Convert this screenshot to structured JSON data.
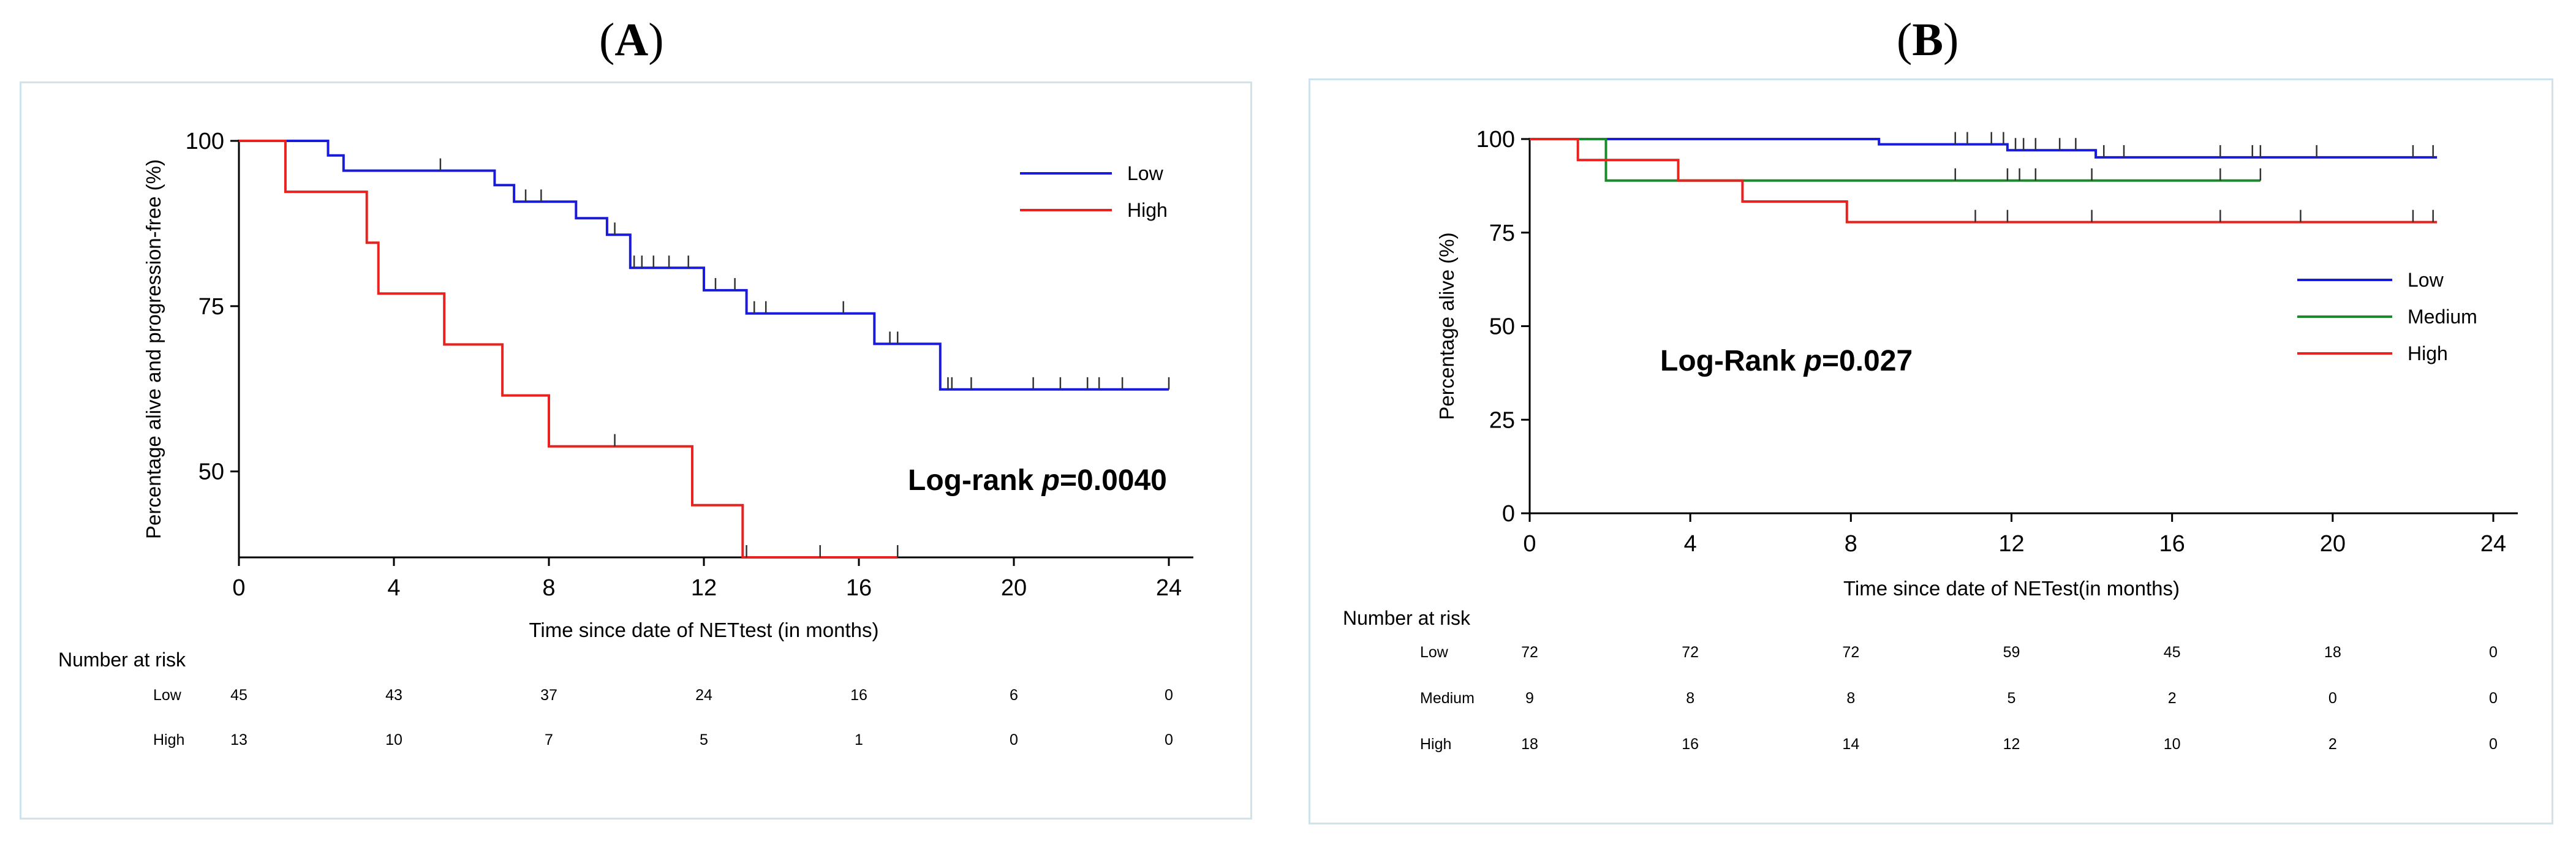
{
  "panels": [
    {
      "label": "A",
      "risk_title": "Number at risk",
      "risk_table": [
        {
          "group": "Low",
          "values": [
            "45",
            "43",
            "37",
            "24",
            "16",
            "6",
            "0"
          ]
        },
        {
          "group": "High",
          "values": [
            "13",
            "10",
            "7",
            "5",
            "1",
            "0",
            "0"
          ]
        }
      ]
    },
    {
      "label": "B",
      "risk_title": "Number at risk",
      "risk_table": [
        {
          "group": "Low",
          "values": [
            "72",
            "72",
            "72",
            "59",
            "45",
            "18",
            "0"
          ]
        },
        {
          "group": "Medium",
          "values": [
            "9",
            "8",
            "8",
            "5",
            "2",
            "0",
            "0"
          ]
        },
        {
          "group": "High",
          "values": [
            "18",
            "16",
            "14",
            "12",
            "10",
            "2",
            "0"
          ]
        }
      ]
    }
  ],
  "chart_data": [
    {
      "type": "line",
      "subtype": "kaplan-meier step",
      "panel": "A",
      "xlabel": "Time since date of NETtest (in months)",
      "ylabel": "Percentage alive and progression-free (%)",
      "xlim": [
        0,
        24
      ],
      "ylim": [
        37,
        100
      ],
      "xticks": [
        0,
        4,
        8,
        12,
        16,
        20,
        24
      ],
      "yticks": [
        50,
        75,
        100
      ],
      "annotation": {
        "prefix": "Log-rank ",
        "p": "p",
        "suffix": "=0.0040"
      },
      "legend_position": "top-right",
      "series": [
        {
          "name": "Low",
          "color": "#1a1adb",
          "steps": [
            [
              0,
              100
            ],
            [
              2.3,
              100
            ],
            [
              2.3,
              97.8
            ],
            [
              2.7,
              97.8
            ],
            [
              2.7,
              95.5
            ],
            [
              6.6,
              95.5
            ],
            [
              6.6,
              93.3
            ],
            [
              7.1,
              93.3
            ],
            [
              7.1,
              90.8
            ],
            [
              8.7,
              90.8
            ],
            [
              8.7,
              88.3
            ],
            [
              9.5,
              88.3
            ],
            [
              9.5,
              85.8
            ],
            [
              10.1,
              85.8
            ],
            [
              10.1,
              80.8
            ],
            [
              12.0,
              80.8
            ],
            [
              12.0,
              77.4
            ],
            [
              13.1,
              77.4
            ],
            [
              13.1,
              73.9
            ],
            [
              16.4,
              73.9
            ],
            [
              16.4,
              69.3
            ],
            [
              18.1,
              69.3
            ],
            [
              18.1,
              62.4
            ],
            [
              24,
              62.4
            ]
          ],
          "censored": [
            [
              5.2,
              95.5
            ],
            [
              7.4,
              90.8
            ],
            [
              7.8,
              90.8
            ],
            [
              9.7,
              85.8
            ],
            [
              10.2,
              80.8
            ],
            [
              10.4,
              80.8
            ],
            [
              10.7,
              80.8
            ],
            [
              11.1,
              80.8
            ],
            [
              11.6,
              80.8
            ],
            [
              12.3,
              77.4
            ],
            [
              12.8,
              77.4
            ],
            [
              13.3,
              73.9
            ],
            [
              13.6,
              73.9
            ],
            [
              15.6,
              73.9
            ],
            [
              16.8,
              69.3
            ],
            [
              17.0,
              69.3
            ],
            [
              18.3,
              62.4
            ],
            [
              18.4,
              62.4
            ],
            [
              18.9,
              62.4
            ],
            [
              20.5,
              62.4
            ],
            [
              21.2,
              62.4
            ],
            [
              21.9,
              62.4
            ],
            [
              22.2,
              62.4
            ],
            [
              22.8,
              62.4
            ],
            [
              24.0,
              62.4
            ]
          ]
        },
        {
          "name": "High",
          "color": "#e8231f",
          "steps": [
            [
              0,
              100
            ],
            [
              1.2,
              100
            ],
            [
              1.2,
              92.3
            ],
            [
              3.3,
              92.3
            ],
            [
              3.3,
              84.6
            ],
            [
              3.6,
              84.6
            ],
            [
              3.6,
              76.9
            ],
            [
              5.3,
              76.9
            ],
            [
              5.3,
              69.2
            ],
            [
              6.8,
              69.2
            ],
            [
              6.8,
              61.5
            ],
            [
              8.0,
              61.5
            ],
            [
              8.0,
              53.8
            ],
            [
              11.7,
              53.8
            ],
            [
              11.7,
              44.9
            ],
            [
              13.0,
              44.9
            ],
            [
              13.0,
              37
            ],
            [
              17.0,
              37
            ]
          ],
          "censored": [
            [
              9.7,
              53.8
            ],
            [
              13.1,
              37
            ],
            [
              15.0,
              37
            ],
            [
              17.0,
              37
            ]
          ]
        }
      ]
    },
    {
      "type": "line",
      "subtype": "kaplan-meier step",
      "panel": "B",
      "xlabel": "Time since date of NETest(in months)",
      "ylabel": "Percentage alive (%)",
      "xlim": [
        0,
        24
      ],
      "ylim": [
        0,
        100
      ],
      "xticks": [
        0,
        4,
        8,
        12,
        16,
        20,
        24
      ],
      "yticks": [
        0,
        25,
        50,
        75,
        100
      ],
      "annotation": {
        "prefix": "Log-Rank ",
        "p": "p",
        "suffix": "=0.027"
      },
      "legend_position": "right",
      "series": [
        {
          "name": "Low",
          "color": "#1a1adb",
          "steps": [
            [
              0,
              100
            ],
            [
              8.7,
              100
            ],
            [
              8.7,
              98.6
            ],
            [
              11.9,
              98.6
            ],
            [
              11.9,
              97.0
            ],
            [
              14.1,
              97.0
            ],
            [
              14.1,
              95.1
            ],
            [
              22.6,
              95.1
            ]
          ],
          "censored": [
            [
              10.6,
              98.6
            ],
            [
              10.9,
              98.6
            ],
            [
              11.5,
              98.6
            ],
            [
              11.8,
              98.6
            ],
            [
              12.1,
              97.0
            ],
            [
              12.3,
              97.0
            ],
            [
              12.6,
              97.0
            ],
            [
              13.2,
              97.0
            ],
            [
              13.6,
              97.0
            ],
            [
              14.3,
              95.1
            ],
            [
              14.8,
              95.1
            ],
            [
              17.2,
              95.1
            ],
            [
              18.0,
              95.1
            ],
            [
              18.2,
              95.1
            ],
            [
              19.6,
              95.1
            ],
            [
              22.0,
              95.1
            ],
            [
              22.5,
              95.1
            ]
          ]
        },
        {
          "name": "Medium",
          "color": "#1a8a2a",
          "steps": [
            [
              0,
              100
            ],
            [
              1.9,
              100
            ],
            [
              1.9,
              88.9
            ],
            [
              18.2,
              88.9
            ]
          ],
          "censored": [
            [
              10.6,
              88.9
            ],
            [
              11.9,
              88.9
            ],
            [
              12.2,
              88.9
            ],
            [
              12.6,
              88.9
            ],
            [
              14.0,
              88.9
            ],
            [
              17.2,
              88.9
            ],
            [
              18.2,
              88.9
            ]
          ]
        },
        {
          "name": "High",
          "color": "#e8231f",
          "steps": [
            [
              0,
              100
            ],
            [
              1.2,
              100
            ],
            [
              1.2,
              94.4
            ],
            [
              3.7,
              94.4
            ],
            [
              3.7,
              88.9
            ],
            [
              5.3,
              88.9
            ],
            [
              5.3,
              83.3
            ],
            [
              7.9,
              83.3
            ],
            [
              7.9,
              77.8
            ],
            [
              22.6,
              77.8
            ]
          ],
          "censored": [
            [
              11.1,
              77.8
            ],
            [
              11.9,
              77.8
            ],
            [
              14.0,
              77.8
            ],
            [
              17.2,
              77.8
            ],
            [
              19.2,
              77.8
            ],
            [
              22.0,
              77.8
            ],
            [
              22.5,
              77.8
            ]
          ]
        }
      ]
    }
  ]
}
